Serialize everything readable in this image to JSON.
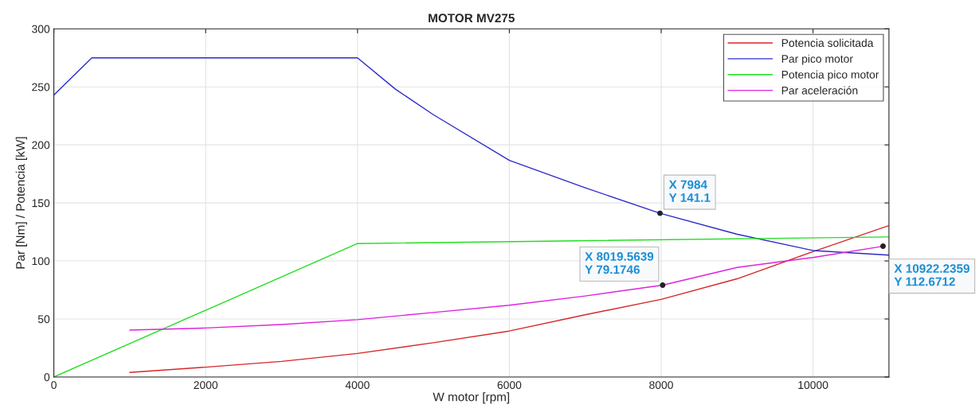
{
  "chart_data": {
    "type": "line",
    "title": "MOTOR MV275",
    "xlabel": "W motor [rpm]",
    "ylabel": "Par [Nm] / Potencia [kW]",
    "xlim": [
      0,
      11000
    ],
    "ylim": [
      0,
      300
    ],
    "xticks": [
      0,
      2000,
      4000,
      6000,
      8000,
      10000
    ],
    "yticks": [
      0,
      50,
      100,
      150,
      200,
      250,
      300
    ],
    "grid": true,
    "legend": "top right",
    "line_style": "solid",
    "marker": "none",
    "series": [
      {
        "name": "Potencia solicitada",
        "color": "#d62728",
        "x": [
          1000,
          2000,
          3000,
          4000,
          5000,
          6000,
          7000,
          8000,
          9000,
          10000,
          11000
        ],
        "values": [
          3.9,
          8.5,
          13.4,
          20.3,
          29.5,
          39.6,
          53.6,
          66.9,
          84.6,
          108,
          130.5
        ]
      },
      {
        "name": "Par pico motor",
        "color": "#2b2bc8",
        "x": [
          0,
          500,
          4000,
          4500,
          5000,
          6000,
          7000,
          7984,
          9000,
          10000,
          11000
        ],
        "values": [
          243,
          275,
          275,
          248,
          226,
          186.7,
          163,
          141.1,
          123,
          109,
          105
        ]
      },
      {
        "name": "Potencia pico motor",
        "color": "#22dd22",
        "x": [
          0,
          4000,
          11000
        ],
        "values": [
          0,
          115,
          120.7
        ]
      },
      {
        "name": "Par aceleración",
        "color": "#dd22dd",
        "x": [
          1000,
          2000,
          3000,
          4000,
          5000,
          6000,
          7000,
          8019.5639,
          9000,
          10000,
          10922.2359
        ],
        "values": [
          40.4,
          42.2,
          45.2,
          49.4,
          55.6,
          61.8,
          69.8,
          79.1746,
          94.4,
          103,
          112.6712
        ]
      }
    ],
    "annotations": [
      {
        "text": "X 7984\nY 141.1",
        "x": 7984,
        "y": 141.1
      },
      {
        "text": "X 8019.5639\nY 79.1746",
        "x": 8019.5639,
        "y": 79.1746
      },
      {
        "text": "X 10922.2359\nY 112.6712",
        "x": 10922.2359,
        "y": 112.6712
      }
    ]
  }
}
